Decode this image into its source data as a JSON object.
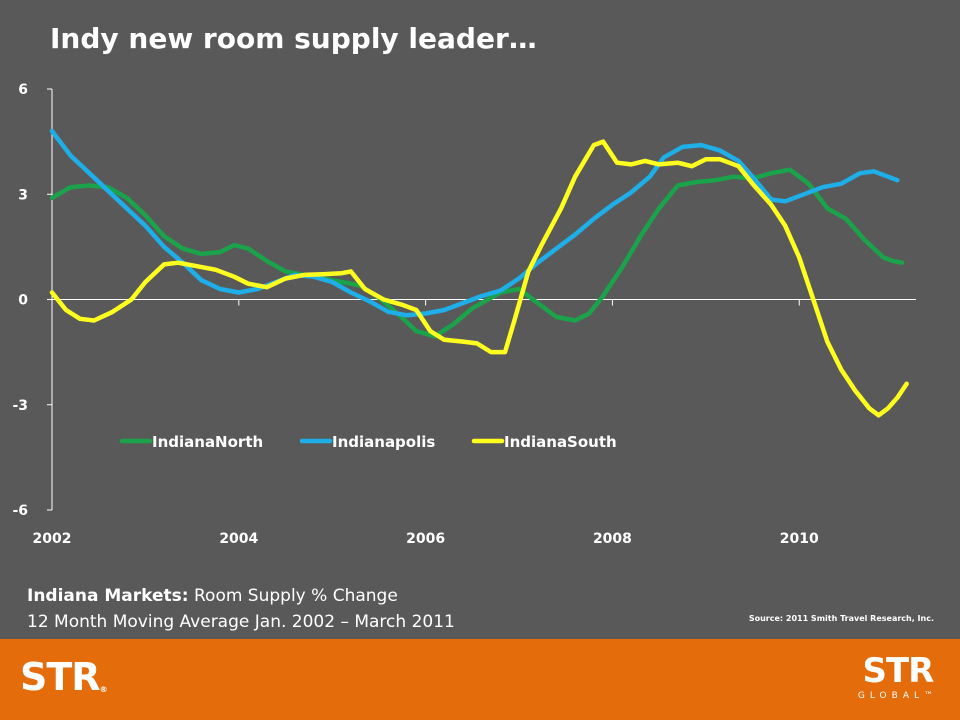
{
  "title": "Indy new room supply leader…",
  "subtitle": {
    "line1_bold": "Indiana Markets:",
    "line1_rest": " Room Supply % Change",
    "line2": "12 Month Moving Average  Jan. 2002 – March 2011"
  },
  "source": "Source: 2011 Smith Travel Research, Inc.",
  "logos": {
    "left": "STR",
    "left_mark": "®",
    "right": "STR",
    "right_sub": "GLOBAL",
    "right_mark": "™"
  },
  "colors": {
    "background": "#595959",
    "footer": "#e46c0a",
    "IndianaNorth": "#1aa34a",
    "Indianapolis": "#1eaee8",
    "IndianaSouth": "#ffff1f"
  },
  "chart_data": {
    "type": "line",
    "title": "Indy new room supply leader…",
    "xlabel": "",
    "ylabel": "",
    "xlim": [
      2002,
      2011.25
    ],
    "ylim": [
      -6,
      6
    ],
    "yticks": [
      6,
      3,
      0,
      -3,
      -6
    ],
    "xticks": [
      2002,
      2004,
      2006,
      2008,
      2010
    ],
    "grid": false,
    "legend": "inside-bottom-center",
    "series": [
      {
        "name": "IndianaNorth",
        "points": [
          [
            2002.0,
            2.9
          ],
          [
            2002.2,
            3.2
          ],
          [
            2002.4,
            3.25
          ],
          [
            2002.6,
            3.2
          ],
          [
            2002.8,
            2.9
          ],
          [
            2003.0,
            2.4
          ],
          [
            2003.2,
            1.8
          ],
          [
            2003.4,
            1.45
          ],
          [
            2003.6,
            1.3
          ],
          [
            2003.8,
            1.35
          ],
          [
            2003.95,
            1.55
          ],
          [
            2004.1,
            1.45
          ],
          [
            2004.3,
            1.1
          ],
          [
            2004.5,
            0.8
          ],
          [
            2004.8,
            0.65
          ],
          [
            2005.0,
            0.55
          ],
          [
            2005.3,
            0.4
          ],
          [
            2005.5,
            0.05
          ],
          [
            2005.7,
            -0.4
          ],
          [
            2005.9,
            -0.9
          ],
          [
            2006.1,
            -1.05
          ],
          [
            2006.3,
            -0.7
          ],
          [
            2006.5,
            -0.25
          ],
          [
            2006.8,
            0.2
          ],
          [
            2007.0,
            0.3
          ],
          [
            2007.2,
            -0.1
          ],
          [
            2007.4,
            -0.5
          ],
          [
            2007.6,
            -0.6
          ],
          [
            2007.75,
            -0.4
          ],
          [
            2007.9,
            0.1
          ],
          [
            2008.1,
            0.9
          ],
          [
            2008.3,
            1.8
          ],
          [
            2008.5,
            2.6
          ],
          [
            2008.7,
            3.25
          ],
          [
            2008.9,
            3.35
          ],
          [
            2009.1,
            3.4
          ],
          [
            2009.3,
            3.5
          ],
          [
            2009.5,
            3.45
          ],
          [
            2009.7,
            3.6
          ],
          [
            2009.9,
            3.7
          ],
          [
            2010.1,
            3.3
          ],
          [
            2010.3,
            2.6
          ],
          [
            2010.5,
            2.3
          ],
          [
            2010.7,
            1.7
          ],
          [
            2010.9,
            1.2
          ],
          [
            2011.0,
            1.1
          ],
          [
            2011.1,
            1.05
          ]
        ]
      },
      {
        "name": "Indianapolis",
        "points": [
          [
            2002.0,
            4.8
          ],
          [
            2002.2,
            4.1
          ],
          [
            2002.4,
            3.6
          ],
          [
            2002.6,
            3.1
          ],
          [
            2002.8,
            2.6
          ],
          [
            2003.0,
            2.1
          ],
          [
            2003.2,
            1.5
          ],
          [
            2003.4,
            1.05
          ],
          [
            2003.6,
            0.55
          ],
          [
            2003.8,
            0.3
          ],
          [
            2004.0,
            0.2
          ],
          [
            2004.2,
            0.3
          ],
          [
            2004.4,
            0.5
          ],
          [
            2004.6,
            0.7
          ],
          [
            2004.8,
            0.65
          ],
          [
            2005.0,
            0.5
          ],
          [
            2005.2,
            0.2
          ],
          [
            2005.4,
            -0.05
          ],
          [
            2005.6,
            -0.35
          ],
          [
            2005.8,
            -0.45
          ],
          [
            2006.0,
            -0.4
          ],
          [
            2006.2,
            -0.3
          ],
          [
            2006.4,
            -0.1
          ],
          [
            2006.6,
            0.1
          ],
          [
            2006.8,
            0.25
          ],
          [
            2007.0,
            0.6
          ],
          [
            2007.2,
            1.05
          ],
          [
            2007.4,
            1.45
          ],
          [
            2007.6,
            1.85
          ],
          [
            2007.8,
            2.3
          ],
          [
            2008.0,
            2.7
          ],
          [
            2008.2,
            3.05
          ],
          [
            2008.4,
            3.5
          ],
          [
            2008.55,
            4.05
          ],
          [
            2008.75,
            4.35
          ],
          [
            2008.95,
            4.4
          ],
          [
            2009.15,
            4.25
          ],
          [
            2009.35,
            3.95
          ],
          [
            2009.5,
            3.5
          ],
          [
            2009.7,
            2.85
          ],
          [
            2009.85,
            2.8
          ],
          [
            2010.05,
            3.0
          ],
          [
            2010.25,
            3.2
          ],
          [
            2010.45,
            3.3
          ],
          [
            2010.65,
            3.6
          ],
          [
            2010.8,
            3.65
          ],
          [
            2010.95,
            3.5
          ],
          [
            2011.05,
            3.4
          ]
        ]
      },
      {
        "name": "IndianaSouth",
        "points": [
          [
            2002.0,
            0.2
          ],
          [
            2002.15,
            -0.3
          ],
          [
            2002.3,
            -0.55
          ],
          [
            2002.45,
            -0.6
          ],
          [
            2002.65,
            -0.35
          ],
          [
            2002.85,
            0.0
          ],
          [
            2003.0,
            0.5
          ],
          [
            2003.2,
            1.0
          ],
          [
            2003.35,
            1.05
          ],
          [
            2003.55,
            0.95
          ],
          [
            2003.75,
            0.85
          ],
          [
            2003.95,
            0.65
          ],
          [
            2004.1,
            0.45
          ],
          [
            2004.3,
            0.35
          ],
          [
            2004.5,
            0.6
          ],
          [
            2004.7,
            0.7
          ],
          [
            2004.9,
            0.72
          ],
          [
            2005.1,
            0.75
          ],
          [
            2005.2,
            0.8
          ],
          [
            2005.35,
            0.3
          ],
          [
            2005.55,
            0.0
          ],
          [
            2005.75,
            -0.15
          ],
          [
            2005.9,
            -0.3
          ],
          [
            2006.05,
            -0.9
          ],
          [
            2006.2,
            -1.15
          ],
          [
            2006.4,
            -1.2
          ],
          [
            2006.55,
            -1.25
          ],
          [
            2006.7,
            -1.5
          ],
          [
            2006.85,
            -1.5
          ],
          [
            2006.95,
            -0.6
          ],
          [
            2007.1,
            0.8
          ],
          [
            2007.25,
            1.6
          ],
          [
            2007.45,
            2.6
          ],
          [
            2007.6,
            3.5
          ],
          [
            2007.8,
            4.4
          ],
          [
            2007.9,
            4.5
          ],
          [
            2008.05,
            3.9
          ],
          [
            2008.2,
            3.85
          ],
          [
            2008.35,
            3.95
          ],
          [
            2008.5,
            3.85
          ],
          [
            2008.7,
            3.9
          ],
          [
            2008.85,
            3.8
          ],
          [
            2009.0,
            4.0
          ],
          [
            2009.15,
            4.0
          ],
          [
            2009.35,
            3.8
          ],
          [
            2009.5,
            3.3
          ],
          [
            2009.7,
            2.7
          ],
          [
            2009.85,
            2.1
          ],
          [
            2010.0,
            1.2
          ],
          [
            2010.15,
            0.0
          ],
          [
            2010.3,
            -1.2
          ],
          [
            2010.45,
            -2.0
          ],
          [
            2010.6,
            -2.6
          ],
          [
            2010.75,
            -3.1
          ],
          [
            2010.85,
            -3.3
          ],
          [
            2010.95,
            -3.1
          ],
          [
            2011.05,
            -2.8
          ],
          [
            2011.15,
            -2.4
          ]
        ]
      }
    ]
  }
}
